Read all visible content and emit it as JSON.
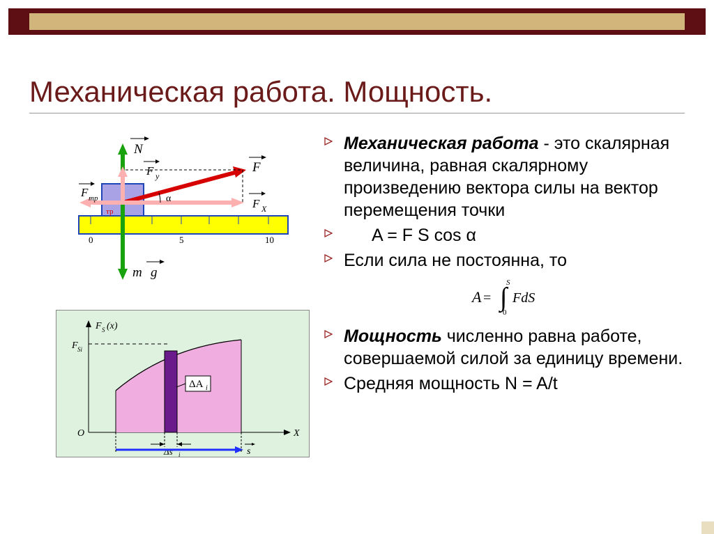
{
  "title": "Механическая работа. Мощность.",
  "bullets": [
    {
      "html": "<span class='bold-italic'>Механическая работа</span> - это скалярная величина, равная скалярному произведению вектора силы на вектор перемещения точки",
      "indent": false
    },
    {
      "html": "A = F S cos α",
      "indent": true
    },
    {
      "html": "Если сила не постоянна, то",
      "indent": false
    },
    {
      "html": "<span class='bold-italic'>Мощность</span> численно равна работе, совершаемой силой за единицу времени.",
      "indent": false
    },
    {
      "html": "Средняя мощность   N = A/t",
      "indent": false
    }
  ],
  "integral": {
    "letter": "A",
    "eq": " = ",
    "lower": "0",
    "upper": "S",
    "body": "FdS"
  },
  "diagram1": {
    "ruler_color": "#ffff00",
    "ruler_ticks": [
      0,
      5,
      10
    ],
    "block_color": "#a9a2e4",
    "n_label": "N",
    "mg_label": "m",
    "g_label": "g",
    "f_tr": "F",
    "tr_sub": "тр",
    "f_label": "F",
    "fy_label": "F",
    "fx_label": "F",
    "y_sub": "у",
    "x_sub": "X",
    "alpha": "α",
    "green": "#17a20e",
    "red": "#d60000",
    "pink": "#fdb0b0",
    "blue": "#1e45b8"
  },
  "diagram2": {
    "bg": "#dff2df",
    "curve_fill": "#f0aee0",
    "fs_label": "F",
    "s_sub": "S",
    "x_of": " (x)",
    "fsi_label": "F",
    "si_sub": "Si",
    "da_label": "ΔA",
    "da_sub": "i",
    "ds_label": "Δs",
    "ds_sub": "i",
    "s_vec": "s",
    "x_label": "X",
    "o_label": "O",
    "blue": "#2030ff",
    "purple": "#6a1a8a"
  }
}
